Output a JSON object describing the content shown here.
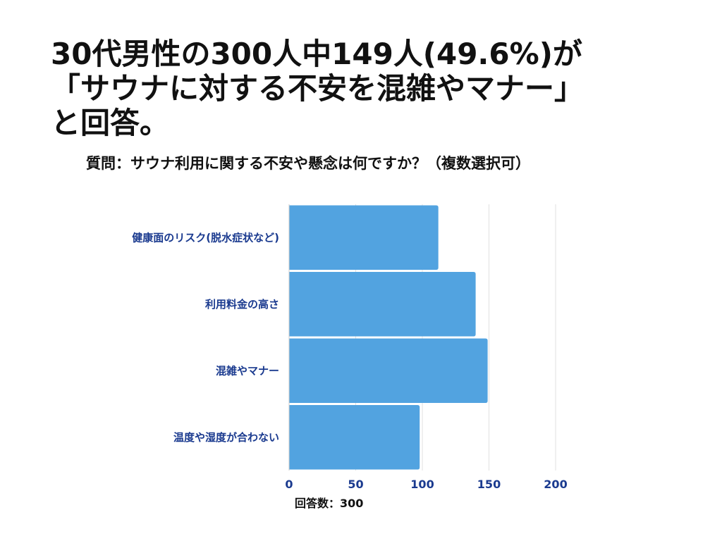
{
  "headline": {
    "line1": "30代男性の300人中149人(49.6%)が",
    "line2": "「サウナに対する不安を混雑やマナー」",
    "line3": "と回答。"
  },
  "question": "質問：サウナ利用に関する不安や懸念は何ですか？（複数選択可）",
  "footer_note": "回答数：300",
  "colors": {
    "bar": "#52a3e0",
    "label": "#1a3a8f",
    "grid": "#e0e0e0",
    "axis": "#cccccc"
  },
  "chart_data": {
    "type": "bar",
    "orientation": "horizontal",
    "categories": [
      "健康面のリスク(脱水症状など)",
      "利用料金の高さ",
      "混雑やマナー",
      "温度や湿度が合わない"
    ],
    "values": [
      112,
      140,
      149,
      98
    ],
    "xlim": [
      0,
      200
    ],
    "xticks": [
      0,
      50,
      100,
      150,
      200
    ],
    "xlabel": "",
    "ylabel": "",
    "grid": true
  }
}
